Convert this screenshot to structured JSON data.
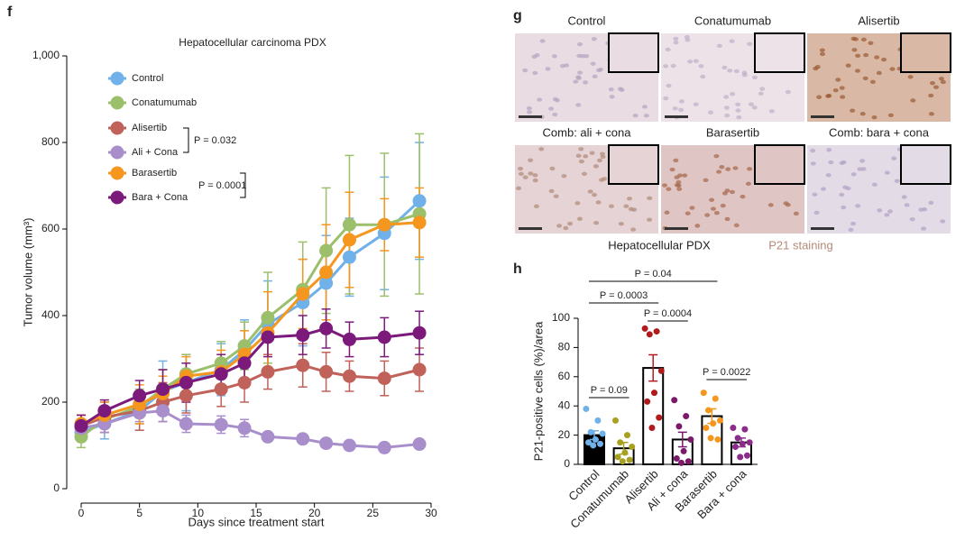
{
  "panel_labels": [
    "f",
    "g",
    "h"
  ],
  "histology": {
    "images": [
      "Control",
      "Conatumumab",
      "Alisertib",
      "Comb: ali + cona",
      "Barasertib",
      "Comb: bara + cona"
    ],
    "caption": "Hepatocellular PDX",
    "stain": "P21 staining"
  },
  "chart_data": [
    {
      "type": "line",
      "title": "Hepatocellular carcinoma PDX",
      "x_label": "Days since treatment start",
      "y_label": "Tumor volume (mm³)",
      "x": [
        0,
        2,
        5,
        7,
        9,
        12,
        14,
        16,
        19,
        21,
        23,
        26,
        29
      ],
      "xlim": [
        0,
        30
      ],
      "xticks": [
        0,
        5,
        10,
        15,
        20,
        25,
        30
      ],
      "ylim": [
        0,
        1000
      ],
      "yticks": [
        0,
        200,
        400,
        600,
        800,
        {
          "value": 1000,
          "label": "1,000"
        }
      ],
      "legend": "upper left",
      "annotations": [
        "P = 0.032",
        "P = 0.0001"
      ],
      "series": [
        {
          "name": "Control",
          "color": "#6fb1e8",
          "values": [
            130,
            150,
            180,
            225,
            245,
            275,
            320,
            380,
            430,
            475,
            535,
            590,
            665
          ],
          "errors": [
            20,
            35,
            45,
            70,
            65,
            60,
            70,
            100,
            100,
            110,
            90,
            130,
            135
          ]
        },
        {
          "name": "Conatumumab",
          "color": "#9bbf6a",
          "values": [
            120,
            160,
            190,
            230,
            265,
            290,
            330,
            395,
            460,
            550,
            610,
            610,
            635
          ],
          "errors": [
            25,
            30,
            40,
            45,
            45,
            50,
            55,
            105,
            110,
            145,
            160,
            165,
            185
          ]
        },
        {
          "name": "Alisertib",
          "color": "#c0615a",
          "values": [
            145,
            165,
            180,
            200,
            215,
            230,
            245,
            270,
            285,
            270,
            260,
            255,
            275
          ],
          "errors": [
            25,
            35,
            45,
            45,
            40,
            40,
            45,
            40,
            50,
            45,
            35,
            40,
            50
          ]
        },
        {
          "name": "Ali + Cona",
          "color": "#a88fcc",
          "values": [
            140,
            150,
            175,
            180,
            150,
            148,
            140,
            120,
            115,
            105,
            100,
            95,
            103
          ],
          "errors": [
            20,
            20,
            20,
            25,
            20,
            20,
            20,
            10,
            10,
            10,
            10,
            10,
            10
          ]
        },
        {
          "name": "Barasertib",
          "color": "#f5961e",
          "values": [
            150,
            170,
            195,
            220,
            260,
            270,
            310,
            360,
            450,
            500,
            575,
            610,
            615
          ],
          "errors": [
            20,
            30,
            45,
            40,
            45,
            50,
            55,
            95,
            80,
            110,
            110,
            60,
            80
          ]
        },
        {
          "name": "Bara + Cona",
          "color": "#7b1a7b",
          "values": [
            145,
            180,
            215,
            230,
            245,
            265,
            290,
            350,
            355,
            370,
            345,
            350,
            360
          ],
          "errors": [
            25,
            25,
            35,
            45,
            45,
            45,
            50,
            45,
            45,
            45,
            40,
            45,
            50
          ]
        }
      ]
    },
    {
      "type": "bar",
      "y_label": "P21-positive cells (%)/area",
      "categories": [
        "Control",
        "Conatumumab",
        "Alisertib",
        "Ali + cona",
        "Barasertib",
        "Bara + cona"
      ],
      "values": [
        20,
        11,
        66,
        17,
        33,
        15
      ],
      "errors": [
        3,
        4,
        9,
        5,
        5,
        3
      ],
      "colors": [
        "#6fb1e8",
        "#a8a020",
        "#b01c1c",
        "#7b1a6b",
        "#f5961e",
        "#8b2c8b"
      ],
      "points": [
        [
          38,
          30,
          22,
          21,
          17,
          15,
          14,
          13
        ],
        [
          30,
          20,
          15,
          12,
          8,
          5,
          3,
          2
        ],
        [
          93,
          91,
          89,
          64,
          49,
          43,
          32,
          25
        ],
        [
          44,
          33,
          26,
          17,
          9,
          4,
          2,
          1
        ],
        [
          49,
          45,
          37,
          30,
          28,
          25,
          17,
          18
        ],
        [
          25,
          24,
          18,
          15,
          14,
          12,
          6,
          5
        ]
      ],
      "ylim": [
        0,
        100
      ],
      "yticks": [
        0,
        20,
        40,
        60,
        80,
        100
      ],
      "annotations": [
        "P = 0.09",
        "P = 0.0003",
        "P = 0.04",
        "P = 0.0004",
        "P = 0.0022"
      ]
    }
  ]
}
